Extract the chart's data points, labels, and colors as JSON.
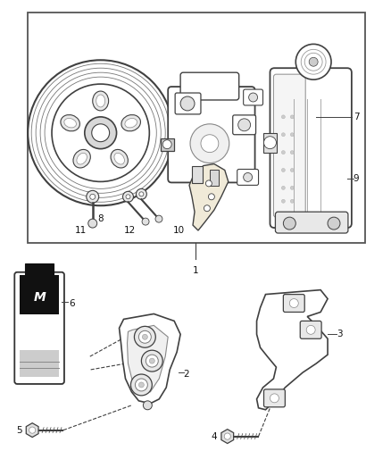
{
  "bg_color": "#ffffff",
  "lc": "#404040",
  "lc_light": "#888888",
  "fig_width": 4.38,
  "fig_height": 5.33,
  "dpi": 100,
  "font_size": 7.5
}
